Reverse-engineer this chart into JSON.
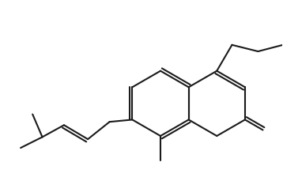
{
  "line_color": "#1a1a1a",
  "background_color": "#ffffff",
  "line_width": 1.5,
  "figsize": [
    3.58,
    2.48
  ],
  "dpi": 100
}
